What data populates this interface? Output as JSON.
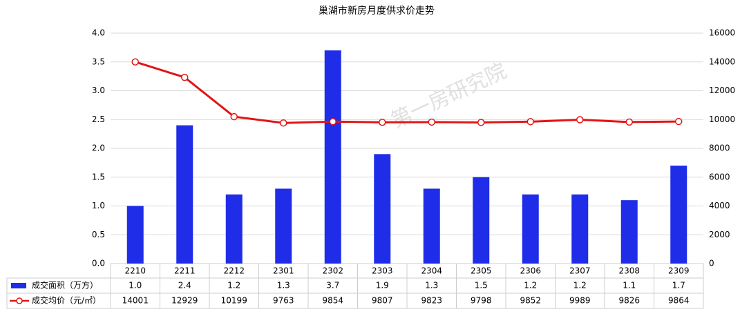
{
  "chart_data": {
    "type": "bar-line",
    "title": "巢湖市新房月度供求价走势",
    "watermark": "第一房研究院",
    "categories": [
      "2210",
      "2211",
      "2212",
      "2301",
      "2302",
      "2303",
      "2304",
      "2305",
      "2306",
      "2307",
      "2308",
      "2309"
    ],
    "series": [
      {
        "name": "成交面积（万方）",
        "type": "bar",
        "color": "#1f2de8",
        "values": [
          1.0,
          2.4,
          1.2,
          1.3,
          3.7,
          1.9,
          1.3,
          1.5,
          1.2,
          1.2,
          1.1,
          1.7
        ],
        "value_labels": [
          "1.0",
          "2.4",
          "1.2",
          "1.3",
          "3.7",
          "1.9",
          "1.3",
          "1.5",
          "1.2",
          "1.2",
          "1.1",
          "1.7"
        ]
      },
      {
        "name": "成交均价（元/㎡）",
        "type": "line",
        "axis": "y2",
        "color": "#e31414",
        "values": [
          14001,
          12929,
          10199,
          9763,
          9854,
          9807,
          9823,
          9798,
          9852,
          9989,
          9826,
          9864
        ]
      }
    ],
    "ylim": [
      0,
      4
    ],
    "yticks": [
      {
        "value": 0,
        "label": "0.0"
      },
      0.5,
      {
        "value": 1,
        "label": "1.0"
      },
      1.5,
      {
        "value": 2,
        "label": "2.0"
      },
      2.5,
      {
        "value": 3,
        "label": "3.0"
      },
      3.5,
      {
        "value": 4,
        "label": "4.0"
      }
    ],
    "y2lim": [
      0,
      16000
    ],
    "y2ticks": [
      0,
      2000,
      4000,
      6000,
      8000,
      10000,
      12000,
      14000,
      16000
    ],
    "grid": true
  }
}
